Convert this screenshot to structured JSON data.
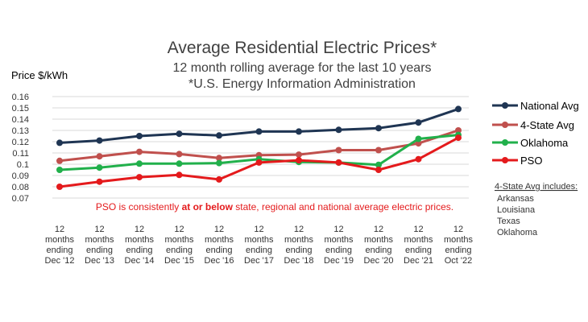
{
  "chart_data": {
    "type": "line",
    "title": "Average Residential Electric Prices*",
    "subtitle_lines": [
      "12 month rolling average for the last 10 years",
      "*U.S. Energy Information Administration"
    ],
    "ylabel": "Price $/kWh",
    "ylim": [
      0.07,
      0.16
    ],
    "yticks": [
      "0.07",
      "0.08",
      "0.09",
      "0.1",
      "0.11",
      "0.12",
      "0.13",
      "0.14",
      "0.15",
      "0.16"
    ],
    "grid": true,
    "legend_position": "right",
    "categories": [
      [
        "12",
        "months",
        "ending",
        "Dec '12"
      ],
      [
        "12",
        "months",
        "ending",
        "Dec '13"
      ],
      [
        "12",
        "months",
        "ending",
        "Dec '14"
      ],
      [
        "12",
        "months",
        "ending",
        "Dec '15"
      ],
      [
        "12",
        "months",
        "ending",
        "Dec '16"
      ],
      [
        "12",
        "months",
        "ending",
        "Dec '17"
      ],
      [
        "12",
        "months",
        "ending",
        "Dec '18"
      ],
      [
        "12",
        "months",
        "ending",
        "Dec '19"
      ],
      [
        "12",
        "months",
        "ending",
        "Dec '20"
      ],
      [
        "12",
        "months",
        "ending",
        "Dec '21"
      ],
      [
        "12",
        "months",
        "ending",
        "Oct '22"
      ]
    ],
    "series": [
      {
        "name": "National Avg",
        "color": "#1f3553",
        "values": [
          0.119,
          0.121,
          0.125,
          0.127,
          0.1255,
          0.129,
          0.129,
          0.1305,
          0.132,
          0.137,
          0.149
        ]
      },
      {
        "name": "4-State Avg",
        "color": "#c0504d",
        "values": [
          0.103,
          0.107,
          0.111,
          0.109,
          0.1055,
          0.108,
          0.1085,
          0.1125,
          0.1125,
          0.1185,
          0.13
        ]
      },
      {
        "name": "Oklahoma",
        "color": "#21b04b",
        "values": [
          0.095,
          0.097,
          0.1005,
          0.1005,
          0.101,
          0.1045,
          0.102,
          0.1015,
          0.0995,
          0.1225,
          0.126
        ]
      },
      {
        "name": "PSO",
        "color": "#e41a1c",
        "values": [
          0.08,
          0.0845,
          0.0885,
          0.0905,
          0.0865,
          0.1015,
          0.1035,
          0.1015,
          0.095,
          0.1045,
          0.1235
        ]
      }
    ],
    "annotation": {
      "before": "PSO is consistently ",
      "bold": "at or below",
      "after": " state, regional and national average electric prices."
    },
    "note": {
      "title": "4-State Avg includes:",
      "items": [
        "Arkansas",
        "Louisiana",
        "Texas",
        "Oklahoma"
      ]
    }
  }
}
